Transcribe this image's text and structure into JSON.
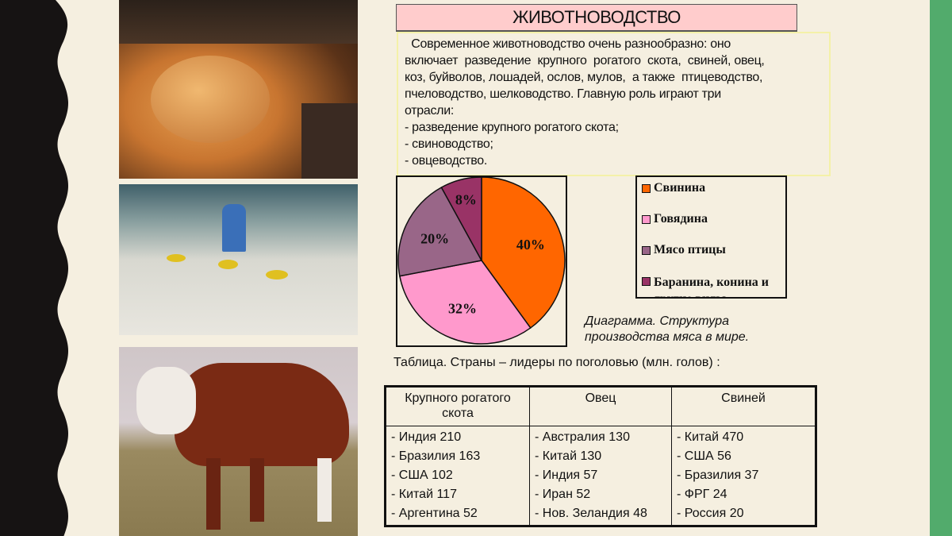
{
  "colors": {
    "background": "#f5efe0",
    "left_band": "#161313",
    "right_band": "#52ab6c",
    "title_fill": "#ffcccc"
  },
  "photos": [
    {
      "name": "roast-chicken-photo"
    },
    {
      "name": "poultry-farm-photo"
    },
    {
      "name": "bull-photo"
    }
  ],
  "title": "ЖИВОТНОВОДСТВО",
  "intro": {
    "lines": [
      "  Современное животноводство очень разнообразно: оно",
      "включает  разведение  крупного  рогатого  скота,  свиней, овец,",
      "коз, буйволов, лошадей, ослов, мулов,  а также  птицеводство,",
      "пчеловодство, шелководство. Главную роль играют три",
      "отрасли:",
      "- разведение крупного рогатого скота;",
      "- свиноводство;",
      "- овцеводство."
    ]
  },
  "chart_data": {
    "type": "pie",
    "categories": [
      "Свинина",
      "Говядина",
      "Мясо птицы",
      "Баранина, конина и другие виды"
    ],
    "values": [
      40,
      32,
      20,
      8
    ],
    "labels": [
      "40%",
      "32%",
      "20%",
      "8%"
    ],
    "colors": [
      "#ff6600",
      "#ff99cc",
      "#996688",
      "#993366"
    ],
    "legend": "right",
    "start": "top, clockwise"
  },
  "caption": [
    "Диаграмма. Структура",
    "производства мяса в мире."
  ],
  "table": {
    "title": "Таблица. Страны – лидеры по поголовью (млн. голов) :",
    "headers": [
      "Крупного рогатого скота",
      "Овец",
      "Свиней"
    ],
    "columns": [
      [
        "- Индия 210",
        "- Бразилия 163",
        "- США 102",
        "- Китай 117",
        "- Аргентина 52"
      ],
      [
        "- Австралия 130",
        "- Китай 130",
        "- Индия 57",
        "- Иран 52",
        "- Нов. Зеландия 48"
      ],
      [
        "- Китай 470",
        "- США 56",
        "- Бразилия 37",
        "- ФРГ 24",
        "- Россия 20"
      ]
    ]
  }
}
